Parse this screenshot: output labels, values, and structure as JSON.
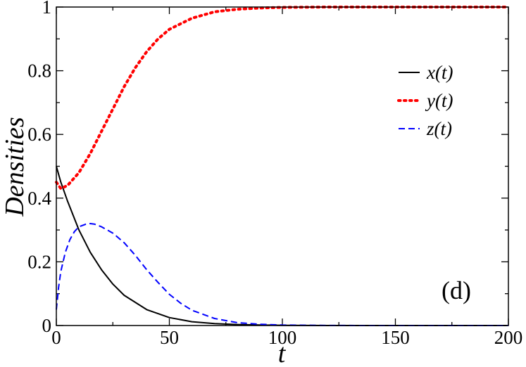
{
  "chart_data": {
    "type": "line",
    "xlabel": "t",
    "ylabel": "Densities",
    "xlim": [
      0,
      200
    ],
    "ylim": [
      0,
      1
    ],
    "xticks": [
      0,
      50,
      100,
      150,
      200
    ],
    "xtick_labels": [
      "0",
      "50",
      "100",
      "150",
      "200"
    ],
    "yticks": [
      0,
      0.2,
      0.4,
      0.6,
      0.8,
      1
    ],
    "ytick_labels": [
      "0",
      "0.2",
      "0.4",
      "0.6",
      "0.8",
      "1"
    ],
    "grid": false,
    "legend_position": "top-right",
    "annotation": "(d)",
    "series": [
      {
        "name": "x(t)",
        "color": "#000000",
        "style": "solid",
        "x": [
          0,
          2,
          5,
          10,
          15,
          20,
          25,
          30,
          40,
          50,
          60,
          70,
          80,
          100,
          120,
          150,
          200
        ],
        "y": [
          0.5,
          0.45,
          0.39,
          0.3,
          0.23,
          0.175,
          0.13,
          0.095,
          0.05,
          0.025,
          0.012,
          0.006,
          0.003,
          0.0005,
          0.0001,
          0,
          0
        ]
      },
      {
        "name": "y(t)",
        "color": "#ff0000",
        "style": "dotted",
        "x": [
          0,
          2,
          5,
          10,
          15,
          20,
          25,
          30,
          35,
          40,
          45,
          50,
          60,
          70,
          80,
          90,
          100,
          120,
          150,
          200
        ],
        "y": [
          0.45,
          0.43,
          0.44,
          0.48,
          0.54,
          0.61,
          0.68,
          0.75,
          0.81,
          0.86,
          0.9,
          0.93,
          0.965,
          0.985,
          0.993,
          0.997,
          0.999,
          1,
          1,
          1
        ]
      },
      {
        "name": "z(t)",
        "color": "#0000ff",
        "style": "dashed",
        "x": [
          0,
          1,
          2,
          4,
          6,
          8,
          10,
          13,
          15,
          17,
          20,
          25,
          30,
          35,
          40,
          45,
          50,
          55,
          60,
          70,
          80,
          90,
          100,
          120,
          150,
          200
        ],
        "y": [
          0.05,
          0.12,
          0.17,
          0.23,
          0.27,
          0.295,
          0.31,
          0.318,
          0.32,
          0.318,
          0.31,
          0.29,
          0.26,
          0.22,
          0.175,
          0.135,
          0.098,
          0.07,
          0.048,
          0.022,
          0.009,
          0.004,
          0.0015,
          0.0003,
          0,
          0
        ]
      }
    ]
  }
}
